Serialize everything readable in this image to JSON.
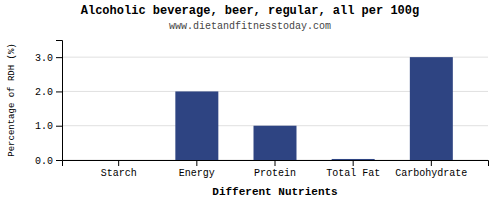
{
  "chart_data": {
    "type": "bar",
    "title": "Alcoholic beverage, beer, regular, all per 100g",
    "subtitle": "www.dietandfitnesstoday.com",
    "xlabel": "Different Nutrients",
    "ylabel": "Percentage of RDH (%)",
    "categories": [
      "Starch",
      "Energy",
      "Protein",
      "Total Fat",
      "Carbohydrate"
    ],
    "values": [
      0.0,
      2.0,
      1.0,
      0.03,
      3.0
    ],
    "color": "#2e4482",
    "ylim": [
      0,
      3.5
    ],
    "yticks": [
      {
        "value": 0.0,
        "label": "0.0"
      },
      {
        "value": 1.0,
        "label": "1.0"
      },
      {
        "value": 2.0,
        "label": "2.0"
      },
      {
        "value": 3.0,
        "label": "3.0"
      }
    ],
    "grid": true
  }
}
